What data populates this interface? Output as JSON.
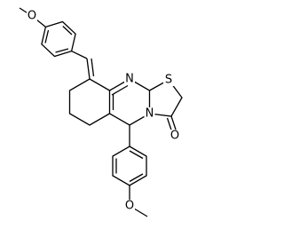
{
  "labels": [
    "O",
    "N",
    "S",
    "N",
    "O",
    "O"
  ]
}
